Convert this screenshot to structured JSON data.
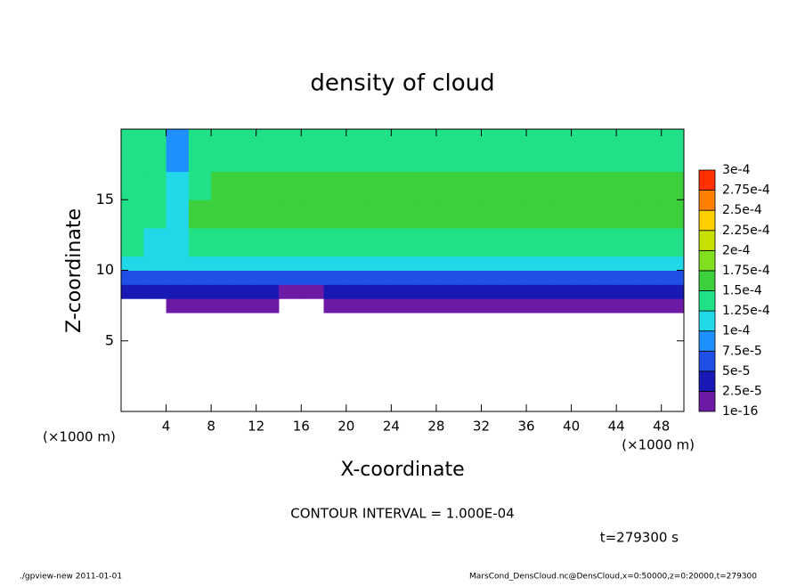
{
  "chart_data": {
    "type": "heatmap",
    "title": "density of cloud",
    "xlabel": "X-coordinate",
    "ylabel": "Z-coordinate",
    "xunit_left": "(×1000 m)",
    "xunit_right": "(×1000 m)",
    "xlim": [
      0,
      50
    ],
    "ylim": [
      0,
      20
    ],
    "xticks": [
      4,
      8,
      12,
      16,
      20,
      24,
      28,
      32,
      36,
      40,
      44,
      48
    ],
    "yticks": [
      5,
      10,
      15
    ],
    "xbins": [
      0,
      2,
      4,
      6,
      8,
      10,
      12,
      14,
      16,
      18,
      20,
      22,
      24,
      26,
      28,
      30,
      32,
      34,
      36,
      38,
      40,
      42,
      44,
      46,
      48,
      50
    ],
    "zbins": [
      7,
      8,
      9,
      10,
      11,
      13,
      15,
      17,
      20
    ],
    "values": [
      [
        null,
        null,
        1e-05,
        1e-05,
        1e-05,
        1e-05,
        1e-05,
        null,
        null,
        1e-05,
        1e-05,
        1e-05,
        1e-05,
        1e-05,
        1e-05,
        1e-05,
        1e-05,
        1e-05,
        1e-05,
        1e-05,
        1e-05,
        1e-05,
        1e-05,
        1e-05,
        1e-05
      ],
      [
        3e-05,
        3e-05,
        4e-05,
        4e-05,
        4e-05,
        4e-05,
        4e-05,
        2e-05,
        2e-05,
        4e-05,
        4e-05,
        4e-05,
        4e-05,
        4e-05,
        4e-05,
        4e-05,
        4e-05,
        4e-05,
        4e-05,
        4e-05,
        4e-05,
        4e-05,
        4e-05,
        4e-05,
        4e-05
      ],
      [
        6e-05,
        6e-05,
        7e-05,
        7e-05,
        7e-05,
        7e-05,
        7e-05,
        6e-05,
        6e-05,
        7e-05,
        7e-05,
        7e-05,
        7e-05,
        7e-05,
        7e-05,
        7e-05,
        7e-05,
        7e-05,
        7e-05,
        7e-05,
        7e-05,
        7e-05,
        7e-05,
        7e-05,
        7e-05
      ],
      [
        0.0001,
        0.0001,
        0.0001,
        0.0001,
        0.0001,
        0.0001,
        0.0001,
        0.0001,
        0.0001,
        0.0001,
        0.00011,
        0.00011,
        0.00011,
        0.00011,
        0.00011,
        0.00011,
        0.00011,
        0.00011,
        0.00011,
        0.00011,
        0.00011,
        0.00011,
        0.00011,
        0.00011,
        0.00011
      ],
      [
        0.00013,
        0.00011,
        0.00011,
        0.00014,
        0.00014,
        0.00014,
        0.00014,
        0.00014,
        0.00014,
        0.00014,
        0.00014,
        0.00014,
        0.00014,
        0.00014,
        0.00014,
        0.00014,
        0.00014,
        0.00014,
        0.00014,
        0.00014,
        0.00014,
        0.00014,
        0.00014,
        0.00014,
        0.00014
      ],
      [
        0.00014,
        0.00013,
        0.00011,
        0.00015,
        0.00015,
        0.00015,
        0.00015,
        0.00015,
        0.00015,
        0.00015,
        0.00015,
        0.00015,
        0.00015,
        0.00015,
        0.00015,
        0.00015,
        0.00015,
        0.00015,
        0.00015,
        0.00015,
        0.00015,
        0.00015,
        0.00015,
        0.00015,
        0.00015
      ],
      [
        0.00014,
        0.00013,
        0.00011,
        0.00014,
        0.00015,
        0.00015,
        0.00015,
        0.00015,
        0.00015,
        0.00015,
        0.00015,
        0.00015,
        0.00015,
        0.00015,
        0.00015,
        0.00015,
        0.00015,
        0.00015,
        0.00015,
        0.00015,
        0.00015,
        0.00015,
        0.00015,
        0.00015,
        0.00015
      ],
      [
        0.00014,
        0.00013,
        9e-05,
        0.00014,
        0.00014,
        0.00014,
        0.00014,
        0.00014,
        0.00014,
        0.00014,
        0.00014,
        0.00014,
        0.00014,
        0.00014,
        0.00014,
        0.00014,
        0.00014,
        0.00014,
        0.00014,
        0.00014,
        0.00014,
        0.00014,
        0.00014,
        0.00014,
        0.00014
      ]
    ],
    "levels": [
      {
        "value": 1e-16,
        "label": "1e-16"
      },
      {
        "value": 2.5e-05,
        "label": "2.5e-5"
      },
      {
        "value": 5e-05,
        "label": "5e-5"
      },
      {
        "value": 7.5e-05,
        "label": "7.5e-5"
      },
      {
        "value": 0.0001,
        "label": "1e-4"
      },
      {
        "value": 0.000125,
        "label": "1.25e-4"
      },
      {
        "value": 0.00015,
        "label": "1.5e-4"
      },
      {
        "value": 0.000175,
        "label": "1.75e-4"
      },
      {
        "value": 0.0002,
        "label": "2e-4"
      },
      {
        "value": 0.000225,
        "label": "2.25e-4"
      },
      {
        "value": 0.00025,
        "label": "2.5e-4"
      },
      {
        "value": 0.000275,
        "label": "2.75e-4"
      },
      {
        "value": 0.0003,
        "label": "3e-4"
      }
    ],
    "colors": [
      "#6c1aa6",
      "#1818b4",
      "#1e50e6",
      "#1e90ff",
      "#20d8e8",
      "#20e088",
      "#3cd03c",
      "#80e020",
      "#c8e000",
      "#ffd000",
      "#ff8000",
      "#ff3000",
      "#f08a8a"
    ],
    "contour_note": "CONTOUR INTERVAL = 1.000E-04",
    "time_note": "t=279300 s",
    "footer_left": "./gpview-new   2011-01-01",
    "footer_right": "MarsCond_DensCloud.nc@DensCloud,x=0:50000,z=0:20000,t=279300"
  }
}
